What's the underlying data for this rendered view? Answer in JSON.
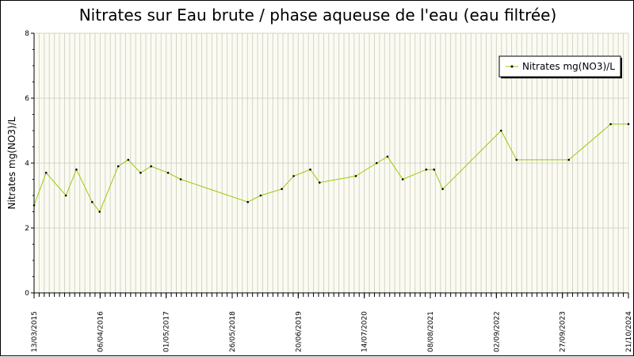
{
  "chart_data": {
    "type": "line",
    "title": "Nitrates sur Eau brute / phase aqueuse de l'eau (eau filtrée)",
    "ylabel": "Nitrates mg(NO3)/L",
    "xlabel": "",
    "ylim": [
      0,
      8
    ],
    "y_ticks": [
      0,
      2,
      4,
      6,
      8
    ],
    "x_range": [
      "2015-03-13",
      "2024-10-21"
    ],
    "x_tick_labels": [
      "13/03/2015",
      "06/04/2016",
      "01/05/2017",
      "26/05/2018",
      "20/06/2019",
      "14/07/2020",
      "08/08/2021",
      "02/09/2022",
      "27/09/2023",
      "21/10/2024"
    ],
    "grid": true,
    "legend_position": "top-right",
    "series": [
      {
        "name": "Nitrates mg(NO3)/L",
        "color": "#99cc00",
        "marker_color": "#000000",
        "points": [
          {
            "x": "2015-03-13",
            "y": 2.7
          },
          {
            "x": "2015-05-23",
            "y": 3.7
          },
          {
            "x": "2015-09-17",
            "y": 3.0
          },
          {
            "x": "2015-11-18",
            "y": 3.8
          },
          {
            "x": "2016-02-19",
            "y": 2.8
          },
          {
            "x": "2016-04-03",
            "y": 2.5
          },
          {
            "x": "2016-07-22",
            "y": 3.9
          },
          {
            "x": "2016-09-19",
            "y": 4.1
          },
          {
            "x": "2016-12-01",
            "y": 3.7
          },
          {
            "x": "2017-02-01",
            "y": 3.9
          },
          {
            "x": "2017-05-12",
            "y": 3.7
          },
          {
            "x": "2017-07-26",
            "y": 3.5
          },
          {
            "x": "2018-08-26",
            "y": 2.8
          },
          {
            "x": "2018-11-10",
            "y": 3.0
          },
          {
            "x": "2019-03-15",
            "y": 3.2
          },
          {
            "x": "2019-05-24",
            "y": 3.6
          },
          {
            "x": "2019-08-30",
            "y": 3.8
          },
          {
            "x": "2019-10-24",
            "y": 3.4
          },
          {
            "x": "2020-05-25",
            "y": 3.6
          },
          {
            "x": "2020-09-25",
            "y": 4.0
          },
          {
            "x": "2020-11-28",
            "y": 4.2
          },
          {
            "x": "2021-02-26",
            "y": 3.5
          },
          {
            "x": "2021-07-15",
            "y": 3.8
          },
          {
            "x": "2021-08-30",
            "y": 3.8
          },
          {
            "x": "2021-10-20",
            "y": 3.2
          },
          {
            "x": "2022-09-30",
            "y": 5.0
          },
          {
            "x": "2022-12-30",
            "y": 4.1
          },
          {
            "x": "2023-11-04",
            "y": 4.1
          },
          {
            "x": "2024-07-08",
            "y": 5.2
          },
          {
            "x": "2024-10-21",
            "y": 5.2
          }
        ]
      }
    ]
  }
}
